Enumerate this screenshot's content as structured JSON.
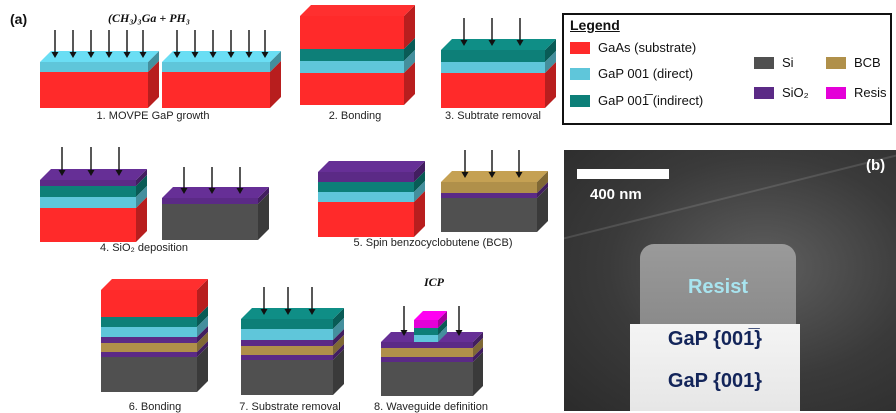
{
  "panel_a_label": "(a)",
  "panel_b_label": "(b)",
  "formula": "(CH₃)₃Ga + PH₃",
  "icp_label": "ICP",
  "steps": [
    "1. MOVPE GaP growth",
    "2. Bonding",
    "3. Subtrate removal",
    "4. SiO₂ deposition",
    "5. Spin benzocyclobutene (BCB)",
    "6. Bonding",
    "7. Substrate removal",
    "8. Waveguide definition"
  ],
  "legend": {
    "title": "Legend",
    "items": [
      {
        "label": "GaAs (substrate)",
        "color": "#ff2a2a"
      },
      {
        "label": "GaP 001 (direct)",
        "color": "#5fc6da"
      },
      {
        "label": "GaP 001̅ (indirect)",
        "color": "#0d7f78"
      },
      {
        "label": "Si",
        "color": "#505050"
      },
      {
        "label": "SiO₂",
        "color": "#5b2a86"
      },
      {
        "label": "BCB",
        "color": "#b0904a"
      },
      {
        "label": "Resis",
        "color": "#e400d8"
      }
    ]
  },
  "micrograph": {
    "scale_label": "400 nm",
    "resist_label": "Resist",
    "gap_top_label": "GaP {001̅}",
    "gap_bottom_label": "GaP {001}"
  }
}
